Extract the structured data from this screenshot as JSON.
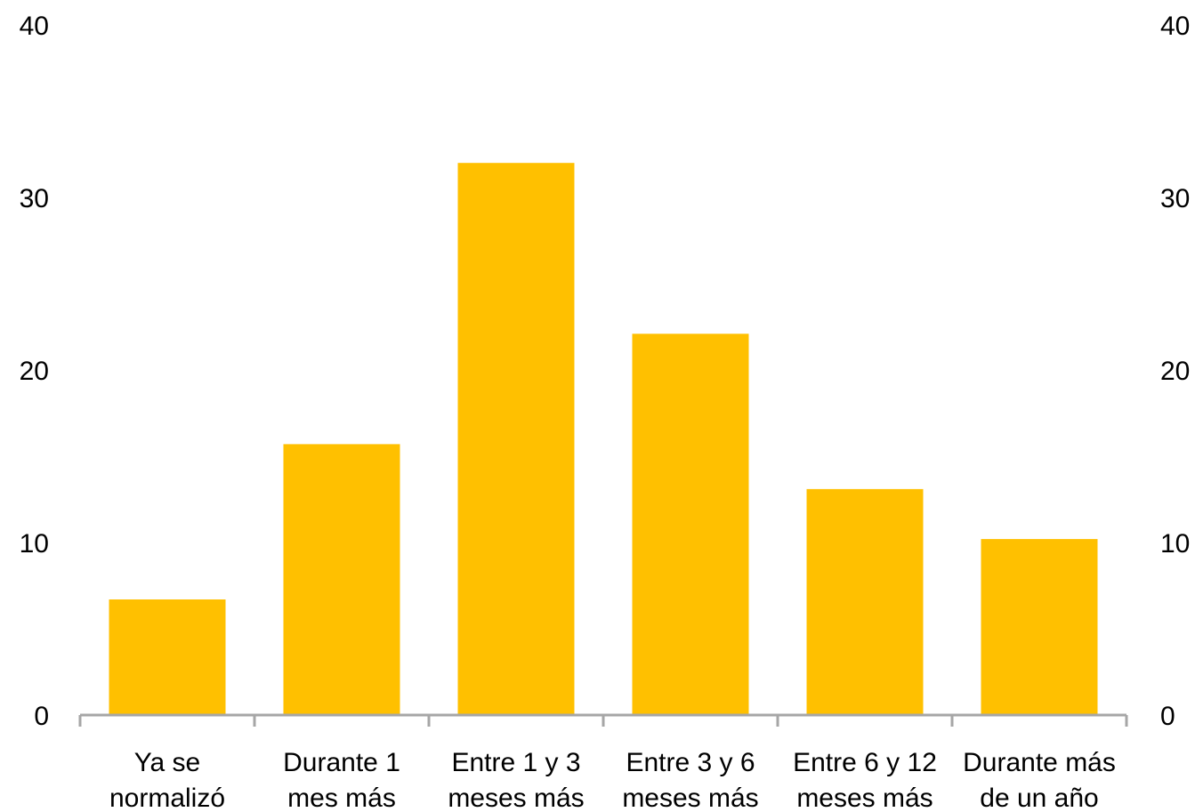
{
  "chart_data": {
    "type": "bar",
    "categories": [
      [
        "Ya se",
        "normalizó"
      ],
      [
        "Durante 1",
        "mes más"
      ],
      [
        "Entre 1 y 3",
        "meses más"
      ],
      [
        "Entre 3 y 6",
        "meses más"
      ],
      [
        "Entre 6 y 12",
        "meses más"
      ],
      [
        "Durante más",
        "de un año"
      ]
    ],
    "values": [
      6.7,
      15.7,
      32.0,
      22.1,
      13.1,
      10.2
    ],
    "ylim": [
      0,
      40
    ],
    "yticks": [
      0,
      10,
      20,
      30,
      40
    ],
    "y_axis_left": true,
    "y_axis_right": true,
    "grid": false,
    "title": "",
    "xlabel": "",
    "ylabel": "",
    "bar_color": "#FFC000",
    "axis_color": "#A6A6A6"
  }
}
